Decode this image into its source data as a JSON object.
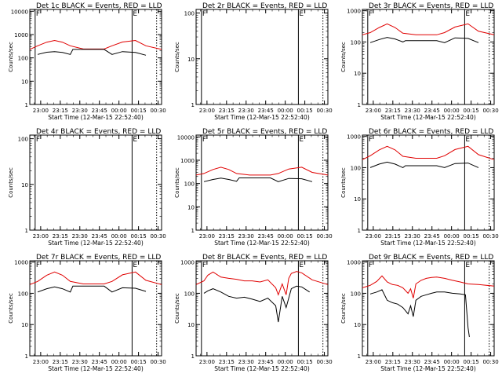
{
  "colors": {
    "events": "#000000",
    "lld": "#e00000",
    "axis": "#000000",
    "background": "#ffffff"
  },
  "chart_data": [
    {
      "type": "line",
      "title": "Det 1c BLACK = Events, RED = LLD",
      "ylabel": "Counts/sec",
      "xlabel": "Start Time (12-Mar-15 22:52:40)",
      "x_ticks": [
        "23:00",
        "23:15",
        "23:30",
        "23:45",
        "00:00",
        "00:15",
        "00:30"
      ],
      "y_ticks": [
        "1",
        "10",
        "100",
        "1000",
        "10000"
      ],
      "y_scale": "log",
      "ylim": [
        1,
        12000
      ],
      "xlim_minutes": [
        -1,
        100
      ],
      "markers": [
        {
          "label": "F",
          "minute": 3.1
        },
        {
          "label": "E",
          "minute": 77.4
        }
      ],
      "dotted_line_minute": 96.2,
      "series": [
        {
          "name": "Events",
          "x": [
            -1,
            5,
            12,
            18,
            24,
            30,
            32,
            40,
            48,
            56,
            62,
            70,
            80,
            88
          ],
          "y": [
            null,
            140,
            175,
            185,
            170,
            140,
            230,
            230,
            230,
            230,
            140,
            185,
            170,
            130
          ]
        },
        {
          "name": "LLD",
          "x": [
            -1,
            5,
            12,
            18,
            24,
            30,
            40,
            48,
            56,
            62,
            70,
            80,
            88,
            100
          ],
          "y": [
            230,
            330,
            470,
            560,
            470,
            330,
            240,
            240,
            240,
            330,
            480,
            560,
            330,
            230
          ]
        }
      ]
    },
    {
      "type": "line",
      "title": "Det 2r BLACK = Events, RED = LLD",
      "ylabel": "Counts/sec",
      "xlabel": "Start Time (12-Mar-15 22:52:40)",
      "x_ticks": [
        "23:00",
        "23:15",
        "23:30",
        "23:45",
        "00:00",
        "00:15",
        "00:30"
      ],
      "y_ticks": [
        "1",
        "10",
        "100"
      ],
      "y_scale": "log",
      "ylim": [
        1,
        120
      ],
      "xlim_minutes": [
        -1,
        100
      ],
      "markers": [
        {
          "label": "F",
          "minute": 3.1
        },
        {
          "label": "E",
          "minute": 77.4
        }
      ],
      "dotted_line_minute": 96.2,
      "series": []
    },
    {
      "type": "line",
      "title": "Det 3r BLACK = Events, RED = LLD",
      "ylabel": "Counts/sec",
      "xlabel": "Start Time (12-Mar-15 22:52:40)",
      "x_ticks": [
        "23:00",
        "23:15",
        "23:30",
        "23:45",
        "00:00",
        "00:15",
        "00:30"
      ],
      "y_ticks": [
        "1",
        "10",
        "100",
        "1000"
      ],
      "y_scale": "log",
      "ylim": [
        1,
        1100
      ],
      "xlim_minutes": [
        -1,
        100
      ],
      "markers": [
        {
          "label": "F",
          "minute": 3.1
        },
        {
          "label": "E",
          "minute": 77.4
        }
      ],
      "dotted_line_minute": 96.2,
      "series": [
        {
          "name": "Events",
          "x": [
            5,
            12,
            18,
            24,
            30,
            32,
            40,
            48,
            56,
            62,
            70,
            80,
            88
          ],
          "y": [
            95,
            120,
            140,
            125,
            100,
            110,
            110,
            110,
            110,
            95,
            135,
            130,
            95
          ]
        },
        {
          "name": "LLD",
          "x": [
            -1,
            5,
            12,
            18,
            24,
            30,
            40,
            48,
            56,
            62,
            70,
            80,
            88,
            100
          ],
          "y": [
            170,
            200,
            290,
            380,
            290,
            190,
            170,
            170,
            170,
            200,
            300,
            380,
            220,
            170
          ]
        }
      ]
    },
    {
      "type": "line",
      "title": "Det 4r BLACK = Events, RED = LLD",
      "ylabel": "Counts/sec",
      "xlabel": "Start Time (12-Mar-15 22:52:40)",
      "x_ticks": [
        "23:00",
        "23:15",
        "23:30",
        "23:45",
        "00:00",
        "00:15",
        "00:30"
      ],
      "y_ticks": [
        "1",
        "10",
        "100"
      ],
      "y_scale": "log",
      "ylim": [
        1,
        120
      ],
      "xlim_minutes": [
        -1,
        100
      ],
      "markers": [
        {
          "label": "F",
          "minute": 3.1
        },
        {
          "label": "E",
          "minute": 77.4
        }
      ],
      "dotted_line_minute": 96.2,
      "series": []
    },
    {
      "type": "line",
      "title": "Det 5r BLACK = Events, RED = LLD",
      "ylabel": "Counts/sec",
      "xlabel": "Start Time (12-Mar-15 22:52:40)",
      "x_ticks": [
        "23:00",
        "23:15",
        "23:30",
        "23:45",
        "00:00",
        "00:15",
        "00:30"
      ],
      "y_ticks": [
        "1",
        "10",
        "100",
        "1000",
        "10000"
      ],
      "y_scale": "log",
      "ylim": [
        1,
        12000
      ],
      "xlim_minutes": [
        -1,
        100
      ],
      "markers": [
        {
          "label": "F",
          "minute": 3.1
        },
        {
          "label": "E",
          "minute": 77.4
        }
      ],
      "dotted_line_minute": 96.2,
      "series": [
        {
          "name": "Events",
          "x": [
            5,
            12,
            18,
            24,
            30,
            32,
            40,
            48,
            56,
            62,
            70,
            80,
            88
          ],
          "y": [
            120,
            150,
            170,
            150,
            125,
            175,
            175,
            175,
            175,
            120,
            165,
            160,
            120
          ]
        },
        {
          "name": "LLD",
          "x": [
            -1,
            5,
            12,
            18,
            24,
            30,
            40,
            48,
            56,
            62,
            70,
            80,
            88,
            100
          ],
          "y": [
            230,
            270,
            400,
            500,
            400,
            270,
            230,
            230,
            230,
            270,
            420,
            500,
            300,
            230
          ]
        }
      ]
    },
    {
      "type": "line",
      "title": "Det 6r BLACK = Events, RED = LLD",
      "ylabel": "Counts/sec",
      "xlabel": "Start Time (12-Mar-15 22:52:40)",
      "x_ticks": [
        "23:00",
        "23:15",
        "23:30",
        "23:45",
        "00:00",
        "00:15",
        "00:30"
      ],
      "y_ticks": [
        "1",
        "10",
        "100",
        "1000"
      ],
      "y_scale": "log",
      "ylim": [
        1,
        1100
      ],
      "xlim_minutes": [
        -1,
        100
      ],
      "markers": [
        {
          "label": "F",
          "minute": 3.1
        },
        {
          "label": "E",
          "minute": 77.4
        }
      ],
      "dotted_line_minute": 96.2,
      "series": [
        {
          "name": "Events",
          "x": [
            5,
            12,
            18,
            24,
            30,
            32,
            40,
            48,
            56,
            62,
            70,
            80,
            88
          ],
          "y": [
            100,
            130,
            150,
            130,
            100,
            115,
            115,
            115,
            115,
            100,
            135,
            140,
            100
          ]
        },
        {
          "name": "LLD",
          "x": [
            -1,
            5,
            12,
            18,
            24,
            30,
            40,
            48,
            56,
            62,
            70,
            80,
            88,
            100
          ],
          "y": [
            180,
            240,
            370,
            480,
            370,
            230,
            200,
            200,
            200,
            240,
            380,
            480,
            260,
            180
          ]
        }
      ]
    },
    {
      "type": "line",
      "title": "Det 7r BLACK = Events, RED = LLD",
      "ylabel": "Counts/sec",
      "xlabel": "Start Time (12-Mar-15 22:52:40)",
      "x_ticks": [
        "23:00",
        "23:15",
        "23:30",
        "23:45",
        "00:00",
        "00:15",
        "00:30"
      ],
      "y_ticks": [
        "1",
        "10",
        "100",
        "1000"
      ],
      "y_scale": "log",
      "ylim": [
        1,
        1100
      ],
      "xlim_minutes": [
        -1,
        100
      ],
      "markers": [
        {
          "label": "F",
          "minute": 3.1
        },
        {
          "label": "E",
          "minute": 77.4
        }
      ],
      "dotted_line_minute": 96.2,
      "series": [
        {
          "name": "Events",
          "x": [
            -1,
            5,
            12,
            18,
            24,
            30,
            32,
            40,
            48,
            56,
            62,
            70,
            80,
            88
          ],
          "y": [
            null,
            110,
            140,
            160,
            140,
            110,
            170,
            170,
            170,
            170,
            110,
            150,
            145,
            115
          ]
        },
        {
          "name": "LLD",
          "x": [
            -1,
            5,
            12,
            18,
            24,
            30,
            40,
            48,
            56,
            62,
            70,
            80,
            88,
            100
          ],
          "y": [
            190,
            240,
            380,
            480,
            380,
            240,
            200,
            200,
            200,
            240,
            390,
            480,
            260,
            190
          ]
        }
      ]
    },
    {
      "type": "line",
      "title": "Det 8r BLACK = Events, RED = LLD",
      "ylabel": "Counts/sec",
      "xlabel": "Start Time (12-Mar-15 22:52:40)",
      "x_ticks": [
        "23:00",
        "23:15",
        "23:30",
        "23:45",
        "00:00",
        "00:15",
        "00:30"
      ],
      "y_ticks": [
        "1",
        "10",
        "100",
        "1000"
      ],
      "y_scale": "log",
      "ylim": [
        1,
        1100
      ],
      "xlim_minutes": [
        -1,
        100
      ],
      "markers": [
        {
          "label": "F",
          "minute": 3.1
        },
        {
          "label": "E",
          "minute": 77.4
        }
      ],
      "dotted_line_minute": 96.2,
      "series": [
        {
          "name": "Events",
          "x": [
            5,
            8,
            12,
            18,
            24,
            30,
            36,
            42,
            48,
            54,
            60,
            62,
            65,
            68,
            70,
            72,
            76,
            80,
            86
          ],
          "y": [
            100,
            120,
            140,
            110,
            80,
            70,
            75,
            65,
            55,
            70,
            40,
            12,
            80,
            35,
            70,
            140,
            170,
            160,
            110
          ]
        },
        {
          "name": "LLD",
          "x": [
            -1,
            5,
            8,
            12,
            18,
            24,
            30,
            36,
            42,
            48,
            54,
            60,
            62,
            65,
            68,
            70,
            72,
            76,
            80,
            88,
            100
          ],
          "y": [
            190,
            250,
            380,
            480,
            330,
            300,
            280,
            250,
            250,
            230,
            270,
            150,
            90,
            200,
            90,
            300,
            430,
            500,
            450,
            270,
            190
          ]
        }
      ]
    },
    {
      "type": "line",
      "title": "Det 9r BLACK = Events, RED = LLD",
      "ylabel": "Counts/sec",
      "xlabel": "Start Time (12-Mar-15 22:52:40)",
      "x_ticks": [
        "23:00",
        "23:15",
        "23:30",
        "23:45",
        "00:00",
        "00:15",
        "00:30"
      ],
      "y_ticks": [
        "1",
        "10",
        "100",
        "1000"
      ],
      "y_scale": "log",
      "ylim": [
        1,
        1100
      ],
      "xlim_minutes": [
        -1,
        100
      ],
      "markers": [
        {
          "label": "F",
          "minute": 3.1
        },
        {
          "label": "E",
          "minute": 77.4
        }
      ],
      "dotted_line_minute": 96.2,
      "series": [
        {
          "name": "Events",
          "x": [
            5,
            10,
            14,
            18,
            22,
            26,
            30,
            34,
            36,
            38,
            40,
            44,
            48,
            52,
            56,
            62,
            68,
            74,
            78,
            80,
            81
          ],
          "y": [
            95,
            110,
            130,
            60,
            50,
            45,
            35,
            22,
            40,
            18,
            60,
            80,
            90,
            100,
            110,
            110,
            100,
            95,
            90,
            8,
            4
          ]
        },
        {
          "name": "LLD",
          "x": [
            -1,
            5,
            10,
            14,
            18,
            22,
            26,
            30,
            34,
            36,
            38,
            40,
            44,
            48,
            52,
            56,
            62,
            68,
            74,
            80,
            88,
            100
          ],
          "y": [
            150,
            180,
            240,
            360,
            230,
            190,
            180,
            150,
            100,
            140,
            70,
            200,
            260,
            300,
            320,
            330,
            300,
            260,
            230,
            200,
            190,
            170
          ]
        }
      ]
    }
  ]
}
